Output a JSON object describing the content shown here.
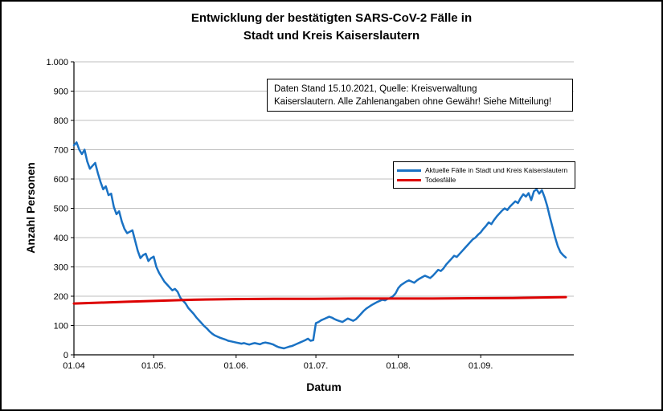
{
  "title": {
    "line1": "Entwicklung der bestätigten SARS-CoV-2 Fälle in",
    "line2": "Stadt und Kreis Kaiserslautern"
  },
  "annotation": {
    "line1": "Daten Stand 15.10.2021, Quelle: Kreisverwaltung",
    "line2": "Kaiserslautern. Alle Zahlenangaben ohne Gewähr! Siehe Mitteilung!"
  },
  "legend": {
    "entries": [
      {
        "label": "Aktuelle Fälle in Stadt und Kreis Kaiserslautern",
        "color": "#1a72c4"
      },
      {
        "label": "Todesfälle",
        "color": "#dd0000"
      }
    ]
  },
  "chart_data": {
    "type": "line",
    "title": "Entwicklung der bestätigten SARS-CoV-2 Fälle in Stadt und Kreis Kaiserslautern",
    "xlabel": "Datum",
    "ylabel": "Anzahl Personen",
    "ylim": [
      0,
      1000
    ],
    "grid": "horizontal",
    "grid_color": "#bfbfbf",
    "legend_position": "right-middle",
    "annotation_text": "Daten Stand 15.10.2021, Quelle: Kreisverwaltung Kaiserslautern. Alle Zahlenangaben ohne Gewähr! Siehe Mitteilung!",
    "y_tick_values": [
      0,
      100,
      200,
      300,
      400,
      500,
      600,
      700,
      800,
      900,
      1000
    ],
    "y_tick_labels": [
      "0",
      "100",
      "200",
      "300",
      "400",
      "500",
      "600",
      "700",
      "800",
      "900",
      "1.000"
    ],
    "x_tick_days": [
      0,
      30,
      61,
      91,
      122,
      153
    ],
    "x_tick_labels": [
      "01.04",
      "01.05.",
      "01.06.",
      "01.07.",
      "01.08.",
      "01.09."
    ],
    "x_domain_days": [
      0,
      188
    ],
    "x_start_date": "01.04.2021",
    "series": [
      {
        "name": "Aktuelle Fälle in Stadt und Kreis Kaiserslautern",
        "color": "#1a72c4",
        "width": 2.5,
        "start_day": 0,
        "values": [
          715,
          725,
          700,
          685,
          700,
          660,
          635,
          645,
          655,
          620,
          590,
          565,
          575,
          545,
          550,
          505,
          480,
          490,
          455,
          430,
          415,
          420,
          425,
          390,
          355,
          330,
          340,
          345,
          320,
          330,
          335,
          300,
          280,
          265,
          250,
          240,
          230,
          220,
          225,
          215,
          195,
          185,
          175,
          160,
          150,
          140,
          128,
          118,
          108,
          98,
          90,
          80,
          72,
          66,
          62,
          58,
          55,
          52,
          48,
          46,
          44,
          42,
          40,
          38,
          40,
          37,
          35,
          38,
          40,
          38,
          36,
          40,
          42,
          40,
          38,
          35,
          30,
          26,
          24,
          22,
          25,
          28,
          30,
          34,
          38,
          42,
          46,
          50,
          55,
          48,
          50,
          108,
          112,
          118,
          122,
          126,
          130,
          127,
          122,
          118,
          115,
          112,
          118,
          124,
          120,
          116,
          121,
          130,
          140,
          150,
          158,
          164,
          170,
          175,
          180,
          184,
          188,
          186,
          191,
          194,
          200,
          210,
          228,
          238,
          244,
          250,
          254,
          250,
          246,
          254,
          260,
          265,
          270,
          266,
          262,
          270,
          280,
          290,
          286,
          295,
          308,
          318,
          328,
          338,
          334,
          344,
          354,
          364,
          374,
          384,
          394,
          400,
          410,
          418,
          430,
          440,
          452,
          446,
          460,
          472,
          482,
          492,
          500,
          494,
          506,
          515,
          524,
          518,
          535,
          548,
          540,
          552,
          528,
          558,
          565,
          550,
          562,
          538,
          508,
          470,
          435,
          400,
          370,
          350,
          340,
          332
        ]
      },
      {
        "name": "Todesfälle",
        "color": "#dd0000",
        "width": 3,
        "points": [
          [
            0,
            175
          ],
          [
            10,
            178
          ],
          [
            20,
            181
          ],
          [
            30,
            184
          ],
          [
            45,
            188
          ],
          [
            60,
            190
          ],
          [
            75,
            191
          ],
          [
            90,
            191
          ],
          [
            105,
            192
          ],
          [
            120,
            192
          ],
          [
            135,
            192
          ],
          [
            150,
            193
          ],
          [
            165,
            194
          ],
          [
            178,
            196
          ],
          [
            185,
            197
          ]
        ]
      }
    ]
  }
}
